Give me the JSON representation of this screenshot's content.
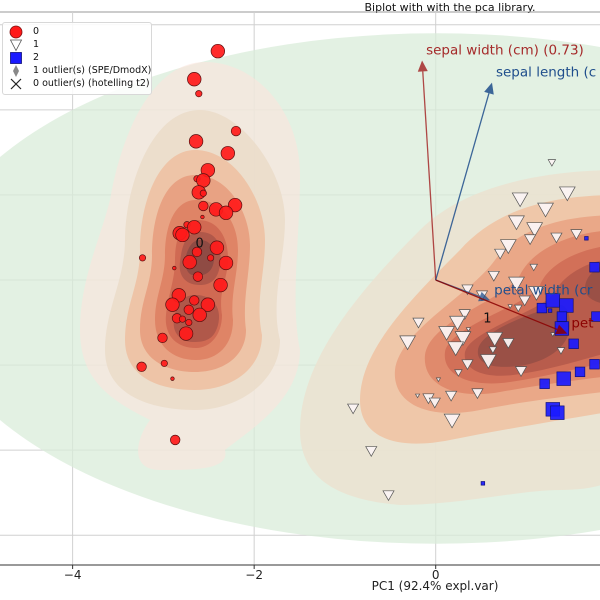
{
  "chart_data": {
    "type": "scatter",
    "title": "Biplot with with the pca library.",
    "xlabel": "PC1 (92.4% expl.var)",
    "ylabel": "",
    "xlim": [
      -4.8,
      1.81
    ],
    "ylim": [
      -3.35,
      3.15
    ],
    "xticks": [
      -4,
      -2,
      0
    ],
    "xtick_labels": [
      "−4",
      "−2",
      "0"
    ],
    "yticks": [
      -3,
      -2,
      -1,
      0,
      1,
      2,
      3
    ],
    "grid": true,
    "legend_position": "top-left",
    "legend": [
      {
        "marker": "circle",
        "label": "0",
        "color": "#ff1a1a"
      },
      {
        "marker": "triangle-down",
        "label": "1",
        "color": "#ffffff"
      },
      {
        "marker": "square",
        "label": "2",
        "color": "#1a1aff"
      },
      {
        "marker": "diamond",
        "label": "1 outlier(s) (SPE/DmodX)",
        "color": "#888888"
      },
      {
        "marker": "x",
        "label": "0 outlier(s) (hotelling t2)",
        "color": "#222222"
      }
    ],
    "series": [
      {
        "name": "0",
        "marker": "circle",
        "color": "#ff1a1a",
        "points": [
          [
            -2.4,
            2.69,
            3
          ],
          [
            -2.66,
            2.36,
            3
          ],
          [
            -2.61,
            2.19,
            1
          ],
          [
            -2.2,
            1.75,
            2
          ],
          [
            -2.64,
            1.63,
            3
          ],
          [
            -2.29,
            1.49,
            3
          ],
          [
            -2.51,
            1.29,
            3
          ],
          [
            -2.63,
            1.19,
            1
          ],
          [
            -2.56,
            1.17,
            3
          ],
          [
            -2.61,
            1.03,
            3
          ],
          [
            -2.56,
            1.02,
            1
          ],
          [
            -2.56,
            0.87,
            2
          ],
          [
            -2.21,
            0.88,
            3
          ],
          [
            -2.42,
            0.83,
            3
          ],
          [
            -2.31,
            0.79,
            3
          ],
          [
            -2.57,
            0.74,
            0
          ],
          [
            -2.74,
            0.65,
            1
          ],
          [
            -2.66,
            0.62,
            3
          ],
          [
            -2.82,
            0.55,
            3
          ],
          [
            -2.79,
            0.53,
            3
          ],
          [
            -2.41,
            0.38,
            3
          ],
          [
            -2.63,
            0.33,
            2
          ],
          [
            -3.23,
            0.26,
            1
          ],
          [
            -2.48,
            0.26,
            1
          ],
          [
            -2.71,
            0.21,
            3
          ],
          [
            -2.31,
            0.2,
            3
          ],
          [
            -2.88,
            0.14,
            0
          ],
          [
            -2.62,
            0.04,
            2
          ],
          [
            -2.37,
            -0.06,
            3
          ],
          [
            -2.83,
            -0.18,
            3
          ],
          [
            -2.9,
            -0.29,
            3
          ],
          [
            -2.66,
            -0.24,
            2
          ],
          [
            -2.51,
            -0.29,
            3
          ],
          [
            -2.72,
            -0.35,
            2
          ],
          [
            -2.6,
            -0.41,
            3
          ],
          [
            -2.85,
            -0.45,
            2
          ],
          [
            -2.79,
            -0.46,
            1
          ],
          [
            -2.72,
            -0.5,
            1
          ],
          [
            -2.75,
            -0.63,
            3
          ],
          [
            -3.01,
            -0.68,
            2
          ],
          [
            -3.24,
            -1.02,
            2
          ],
          [
            -2.99,
            -0.98,
            1
          ],
          [
            -2.9,
            -1.16,
            0
          ],
          [
            -2.87,
            -1.88,
            2
          ]
        ]
      },
      {
        "name": "1",
        "marker": "triangle-down",
        "color": "#ffffff",
        "points": [
          [
            1.28,
            1.38,
            1
          ],
          [
            1.45,
            1.02,
            3
          ],
          [
            0.93,
            0.95,
            3
          ],
          [
            1.21,
            0.83,
            3
          ],
          [
            0.89,
            0.68,
            3
          ],
          [
            1.09,
            0.6,
            3
          ],
          [
            1.04,
            0.48,
            2
          ],
          [
            1.33,
            0.5,
            2
          ],
          [
            1.55,
            0.54,
            2
          ],
          [
            0.8,
            0.4,
            3
          ],
          [
            0.71,
            0.31,
            2
          ],
          [
            1.08,
            0.15,
            1
          ],
          [
            0.64,
            0.05,
            2
          ],
          [
            0.89,
            -0.04,
            3
          ],
          [
            1.11,
            -0.15,
            3
          ],
          [
            0.98,
            -0.24,
            2
          ],
          [
            0.35,
            -0.11,
            2
          ],
          [
            0.51,
            -0.18,
            2
          ],
          [
            0.91,
            -0.33,
            1
          ],
          [
            0.82,
            -0.31,
            0
          ],
          [
            0.32,
            -0.4,
            2
          ],
          [
            -0.19,
            -0.5,
            2
          ],
          [
            -0.31,
            -0.73,
            3
          ],
          [
            0.24,
            -0.5,
            3
          ],
          [
            0.12,
            -0.62,
            3
          ],
          [
            0.3,
            -0.68,
            3
          ],
          [
            0.22,
            -0.8,
            3
          ],
          [
            0.36,
            -0.58,
            0
          ],
          [
            0.65,
            -0.69,
            3
          ],
          [
            0.8,
            -0.74,
            2
          ],
          [
            0.63,
            -0.82,
            1
          ],
          [
            0.58,
            -0.95,
            3
          ],
          [
            0.35,
            -0.99,
            2
          ],
          [
            0.25,
            -1.09,
            1
          ],
          [
            0.94,
            -1.07,
            2
          ],
          [
            0.03,
            -1.17,
            0
          ],
          [
            0.46,
            -1.33,
            2
          ],
          [
            0.17,
            -1.36,
            2
          ],
          [
            -0.2,
            -1.36,
            0
          ],
          [
            -0.08,
            -1.39,
            2
          ],
          [
            -0.01,
            -1.44,
            2
          ],
          [
            0.18,
            -1.65,
            3
          ],
          [
            -0.91,
            -1.51,
            2
          ],
          [
            -0.71,
            -2.01,
            2
          ],
          [
            -0.52,
            -2.53,
            2
          ],
          [
            1.38,
            -0.83,
            1
          ],
          [
            1.29,
            -0.64,
            0
          ]
        ]
      },
      {
        "name": "2",
        "marker": "square",
        "color": "#1a1aff",
        "points": [
          [
            1.66,
            0.49,
            0
          ],
          [
            1.75,
            0.15,
            2
          ],
          [
            1.17,
            -0.33,
            2
          ],
          [
            1.29,
            -0.24,
            3
          ],
          [
            1.44,
            -0.3,
            3
          ],
          [
            1.26,
            -0.36,
            0
          ],
          [
            1.39,
            -0.43,
            2
          ],
          [
            1.39,
            -0.57,
            3
          ],
          [
            1.52,
            -0.75,
            2
          ],
          [
            1.77,
            -0.43,
            2
          ],
          [
            1.75,
            -0.99,
            2
          ],
          [
            1.59,
            -1.08,
            2
          ],
          [
            1.41,
            -1.16,
            3
          ],
          [
            1.2,
            -1.22,
            2
          ],
          [
            1.29,
            -1.52,
            3
          ],
          [
            1.34,
            -1.56,
            3
          ],
          [
            0.52,
            -2.39,
            0
          ]
        ]
      }
    ],
    "cluster_labels": [
      {
        "text": "0",
        "x": -2.6,
        "y": 0.44
      },
      {
        "text": "1",
        "x": 0.57,
        "y": -0.44
      }
    ],
    "loadings": [
      {
        "label": "sepal width (cm) (0.73)",
        "x": -0.15,
        "y": 2.58,
        "color": "#a52a2a"
      },
      {
        "label": "sepal length (c",
        "x": 0.62,
        "y": 2.32,
        "color": "#1f4e8c"
      },
      {
        "label": "petal width (cr",
        "x": 0.6,
        "y": -0.24,
        "color": "#1f4e8c"
      },
      {
        "label": "pet",
        "x": 1.45,
        "y": -0.63,
        "color": "#8b0000"
      }
    ],
    "confidence_ellipse": {
      "cx": 0.0,
      "cy": -0.1,
      "rx": 5.6,
      "ry": 3.0,
      "color": "#d9ecd9"
    }
  }
}
